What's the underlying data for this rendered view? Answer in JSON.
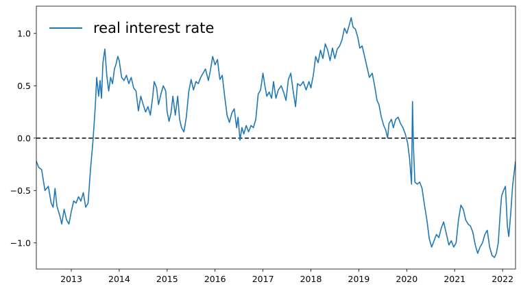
{
  "chart_data": {
    "type": "line",
    "title": "",
    "xlabel": "",
    "ylabel": "",
    "xlim": [
      2012.27,
      2022.27
    ],
    "ylim": [
      -1.25,
      1.26
    ],
    "x_ticks": [
      2013,
      2014,
      2015,
      2016,
      2017,
      2018,
      2019,
      2020,
      2021,
      2022
    ],
    "x_tick_labels": [
      "2013",
      "2014",
      "2015",
      "2016",
      "2017",
      "2018",
      "2019",
      "2020",
      "2021",
      "2022"
    ],
    "y_ticks": [
      -1.0,
      -0.5,
      0.0,
      0.5,
      1.0
    ],
    "y_tick_labels": [
      "−1.0",
      "−0.5",
      "0.0",
      "0.5",
      "1.0"
    ],
    "grid": false,
    "legend_position": "top-left",
    "reference_line": {
      "y": 0.0,
      "style": "dashed",
      "color": "#000000"
    },
    "series": [
      {
        "name": "real interest rate",
        "color": "#1f77b4",
        "points": [
          [
            2012.27,
            -0.22
          ],
          [
            2012.32,
            -0.28
          ],
          [
            2012.38,
            -0.3
          ],
          [
            2012.45,
            -0.5
          ],
          [
            2012.52,
            -0.46
          ],
          [
            2012.58,
            -0.62
          ],
          [
            2012.62,
            -0.66
          ],
          [
            2012.66,
            -0.48
          ],
          [
            2012.7,
            -0.65
          ],
          [
            2012.76,
            -0.74
          ],
          [
            2012.8,
            -0.82
          ],
          [
            2012.85,
            -0.68
          ],
          [
            2012.9,
            -0.78
          ],
          [
            2012.95,
            -0.82
          ],
          [
            2013.0,
            -0.7
          ],
          [
            2013.05,
            -0.6
          ],
          [
            2013.1,
            -0.62
          ],
          [
            2013.15,
            -0.56
          ],
          [
            2013.2,
            -0.6
          ],
          [
            2013.25,
            -0.52
          ],
          [
            2013.3,
            -0.66
          ],
          [
            2013.35,
            -0.62
          ],
          [
            2013.4,
            -0.3
          ],
          [
            2013.45,
            -0.04
          ],
          [
            2013.5,
            0.3
          ],
          [
            2013.53,
            0.58
          ],
          [
            2013.57,
            0.4
          ],
          [
            2013.6,
            0.55
          ],
          [
            2013.63,
            0.38
          ],
          [
            2013.66,
            0.72
          ],
          [
            2013.7,
            0.85
          ],
          [
            2013.74,
            0.6
          ],
          [
            2013.78,
            0.45
          ],
          [
            2013.82,
            0.58
          ],
          [
            2013.86,
            0.52
          ],
          [
            2013.9,
            0.66
          ],
          [
            2013.93,
            0.7
          ],
          [
            2013.97,
            0.78
          ],
          [
            2014.0,
            0.74
          ],
          [
            2014.05,
            0.58
          ],
          [
            2014.1,
            0.55
          ],
          [
            2014.15,
            0.6
          ],
          [
            2014.2,
            0.52
          ],
          [
            2014.25,
            0.58
          ],
          [
            2014.3,
            0.48
          ],
          [
            2014.35,
            0.45
          ],
          [
            2014.4,
            0.26
          ],
          [
            2014.45,
            0.4
          ],
          [
            2014.5,
            0.32
          ],
          [
            2014.55,
            0.25
          ],
          [
            2014.6,
            0.3
          ],
          [
            2014.65,
            0.22
          ],
          [
            2014.7,
            0.4
          ],
          [
            2014.73,
            0.54
          ],
          [
            2014.78,
            0.48
          ],
          [
            2014.82,
            0.32
          ],
          [
            2014.87,
            0.42
          ],
          [
            2014.92,
            0.5
          ],
          [
            2014.97,
            0.45
          ],
          [
            2015.0,
            0.25
          ],
          [
            2015.04,
            0.16
          ],
          [
            2015.08,
            0.24
          ],
          [
            2015.12,
            0.4
          ],
          [
            2015.17,
            0.22
          ],
          [
            2015.22,
            0.4
          ],
          [
            2015.26,
            0.18
          ],
          [
            2015.3,
            0.1
          ],
          [
            2015.35,
            0.06
          ],
          [
            2015.4,
            0.2
          ],
          [
            2015.45,
            0.44
          ],
          [
            2015.5,
            0.56
          ],
          [
            2015.55,
            0.46
          ],
          [
            2015.6,
            0.54
          ],
          [
            2015.65,
            0.52
          ],
          [
            2015.7,
            0.58
          ],
          [
            2015.75,
            0.62
          ],
          [
            2015.8,
            0.66
          ],
          [
            2015.86,
            0.55
          ],
          [
            2015.9,
            0.64
          ],
          [
            2015.95,
            0.78
          ],
          [
            2016.0,
            0.7
          ],
          [
            2016.05,
            0.75
          ],
          [
            2016.1,
            0.56
          ],
          [
            2016.15,
            0.6
          ],
          [
            2016.2,
            0.4
          ],
          [
            2016.25,
            0.22
          ],
          [
            2016.3,
            0.15
          ],
          [
            2016.35,
            0.24
          ],
          [
            2016.4,
            0.28
          ],
          [
            2016.45,
            0.1
          ],
          [
            2016.48,
            0.2
          ],
          [
            2016.52,
            -0.02
          ],
          [
            2016.56,
            0.1
          ],
          [
            2016.6,
            0.04
          ],
          [
            2016.65,
            0.12
          ],
          [
            2016.7,
            0.06
          ],
          [
            2016.75,
            0.12
          ],
          [
            2016.8,
            0.1
          ],
          [
            2016.85,
            0.18
          ],
          [
            2016.9,
            0.42
          ],
          [
            2016.95,
            0.46
          ],
          [
            2017.0,
            0.62
          ],
          [
            2017.04,
            0.5
          ],
          [
            2017.08,
            0.4
          ],
          [
            2017.13,
            0.44
          ],
          [
            2017.18,
            0.38
          ],
          [
            2017.22,
            0.54
          ],
          [
            2017.27,
            0.38
          ],
          [
            2017.32,
            0.46
          ],
          [
            2017.38,
            0.5
          ],
          [
            2017.43,
            0.44
          ],
          [
            2017.48,
            0.36
          ],
          [
            2017.53,
            0.56
          ],
          [
            2017.58,
            0.62
          ],
          [
            2017.63,
            0.45
          ],
          [
            2017.68,
            0.3
          ],
          [
            2017.72,
            0.52
          ],
          [
            2017.78,
            0.5
          ],
          [
            2017.84,
            0.54
          ],
          [
            2017.9,
            0.46
          ],
          [
            2017.96,
            0.54
          ],
          [
            2018.0,
            0.48
          ],
          [
            2018.05,
            0.6
          ],
          [
            2018.1,
            0.78
          ],
          [
            2018.15,
            0.72
          ],
          [
            2018.2,
            0.84
          ],
          [
            2018.25,
            0.76
          ],
          [
            2018.3,
            0.9
          ],
          [
            2018.35,
            0.84
          ],
          [
            2018.4,
            0.74
          ],
          [
            2018.45,
            0.86
          ],
          [
            2018.5,
            0.76
          ],
          [
            2018.55,
            0.85
          ],
          [
            2018.6,
            0.88
          ],
          [
            2018.65,
            0.94
          ],
          [
            2018.7,
            1.05
          ],
          [
            2018.75,
            1.0
          ],
          [
            2018.8,
            1.08
          ],
          [
            2018.84,
            1.15
          ],
          [
            2018.88,
            1.06
          ],
          [
            2018.93,
            1.04
          ],
          [
            2018.98,
            0.96
          ],
          [
            2019.02,
            0.86
          ],
          [
            2019.07,
            0.88
          ],
          [
            2019.12,
            0.78
          ],
          [
            2019.18,
            0.66
          ],
          [
            2019.22,
            0.58
          ],
          [
            2019.28,
            0.62
          ],
          [
            2019.33,
            0.5
          ],
          [
            2019.38,
            0.36
          ],
          [
            2019.42,
            0.32
          ],
          [
            2019.47,
            0.2
          ],
          [
            2019.52,
            0.12
          ],
          [
            2019.56,
            0.08
          ],
          [
            2019.6,
            0.0
          ],
          [
            2019.63,
            0.14
          ],
          [
            2019.68,
            0.18
          ],
          [
            2019.72,
            0.1
          ],
          [
            2019.77,
            0.18
          ],
          [
            2019.82,
            0.2
          ],
          [
            2019.87,
            0.14
          ],
          [
            2019.92,
            0.1
          ],
          [
            2019.97,
            0.04
          ],
          [
            2020.02,
            -0.05
          ],
          [
            2020.06,
            -0.2
          ],
          [
            2020.1,
            -0.44
          ],
          [
            2020.12,
            0.35
          ],
          [
            2020.14,
            -0.08
          ],
          [
            2020.17,
            -0.42
          ],
          [
            2020.22,
            -0.44
          ],
          [
            2020.27,
            -0.42
          ],
          [
            2020.32,
            -0.48
          ],
          [
            2020.37,
            -0.64
          ],
          [
            2020.42,
            -0.78
          ],
          [
            2020.47,
            -0.96
          ],
          [
            2020.52,
            -1.04
          ],
          [
            2020.57,
            -0.98
          ],
          [
            2020.62,
            -0.92
          ],
          [
            2020.67,
            -0.95
          ],
          [
            2020.72,
            -0.86
          ],
          [
            2020.77,
            -0.8
          ],
          [
            2020.82,
            -0.9
          ],
          [
            2020.88,
            -1.02
          ],
          [
            2020.93,
            -0.98
          ],
          [
            2020.98,
            -1.04
          ],
          [
            2021.03,
            -1.0
          ],
          [
            2021.08,
            -0.78
          ],
          [
            2021.13,
            -0.64
          ],
          [
            2021.18,
            -0.68
          ],
          [
            2021.23,
            -0.78
          ],
          [
            2021.28,
            -0.82
          ],
          [
            2021.33,
            -0.84
          ],
          [
            2021.38,
            -0.9
          ],
          [
            2021.43,
            -1.02
          ],
          [
            2021.48,
            -1.1
          ],
          [
            2021.53,
            -1.04
          ],
          [
            2021.58,
            -1.0
          ],
          [
            2021.63,
            -0.92
          ],
          [
            2021.68,
            -0.88
          ],
          [
            2021.73,
            -1.04
          ],
          [
            2021.78,
            -1.12
          ],
          [
            2021.83,
            -1.14
          ],
          [
            2021.87,
            -1.1
          ],
          [
            2021.91,
            -1.0
          ],
          [
            2021.95,
            -0.72
          ],
          [
            2021.98,
            -0.55
          ],
          [
            2022.02,
            -0.5
          ],
          [
            2022.06,
            -0.46
          ],
          [
            2022.1,
            -0.84
          ],
          [
            2022.13,
            -0.94
          ],
          [
            2022.17,
            -0.72
          ],
          [
            2022.21,
            -0.45
          ],
          [
            2022.27,
            -0.22
          ]
        ]
      }
    ]
  }
}
